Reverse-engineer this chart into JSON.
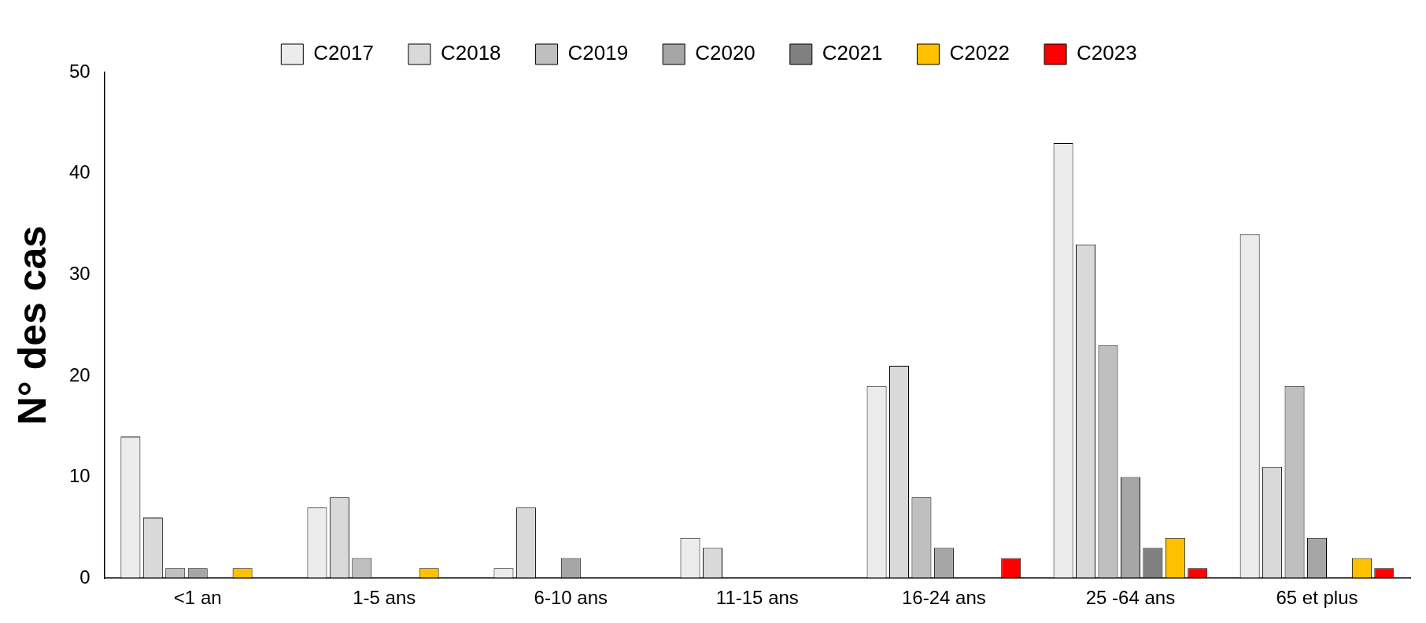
{
  "chart_data": {
    "type": "bar",
    "ylabel": "N° des cas",
    "categories": [
      "<1 an",
      "1-5 ans",
      "6-10 ans",
      "11-15 ans",
      "16-24 ans",
      "25 -64 ans",
      "65 et plus"
    ],
    "series": [
      {
        "name": "C2017",
        "color": "#ececec",
        "values": [
          14,
          7,
          1,
          4,
          19,
          43,
          34
        ]
      },
      {
        "name": "C2018",
        "color": "#d9d9d9",
        "values": [
          6,
          8,
          7,
          3,
          21,
          33,
          11
        ]
      },
      {
        "name": "C2019",
        "color": "#bfbfbf",
        "values": [
          1,
          2,
          0,
          0,
          8,
          23,
          19
        ]
      },
      {
        "name": "C2020",
        "color": "#a6a6a6",
        "values": [
          1,
          0,
          2,
          0,
          3,
          10,
          4
        ]
      },
      {
        "name": "C2021",
        "color": "#808080",
        "values": [
          0,
          0,
          0,
          0,
          0,
          3,
          0
        ]
      },
      {
        "name": "C2022",
        "color": "#ffc000",
        "values": [
          1,
          1,
          0,
          0,
          0,
          4,
          2
        ]
      },
      {
        "name": "C2023",
        "color": "#ff0000",
        "values": [
          0,
          0,
          0,
          0,
          2,
          1,
          1
        ]
      }
    ],
    "ylim": [
      0,
      50
    ],
    "yticks": [
      0,
      10,
      20,
      30,
      40,
      50
    ],
    "grid": false,
    "legend": "top"
  }
}
